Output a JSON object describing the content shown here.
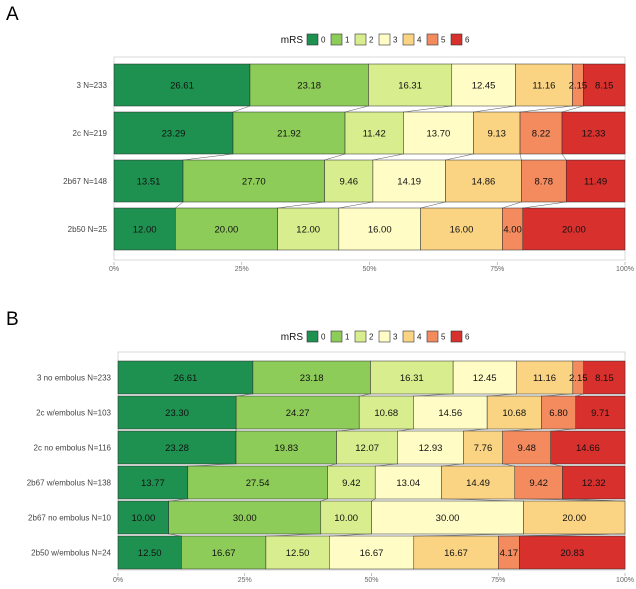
{
  "mrs_colors": [
    "#1e9150",
    "#8ecc5a",
    "#d8ed8d",
    "#fffcc5",
    "#fbd483",
    "#f38b5f",
    "#d7302d"
  ],
  "chart_data": [
    {
      "type": "bar",
      "orientation": "horizontal-stacked-percent",
      "panel_label": "A",
      "legend_title": "mRS",
      "legend_entries": [
        "0",
        "1",
        "2",
        "3",
        "4",
        "5",
        "6"
      ],
      "categories": [
        "3 N=233",
        "2c N=219",
        "2b67 N=148",
        "2b50 N=25"
      ],
      "values": [
        [
          26.61,
          23.18,
          16.31,
          12.45,
          11.16,
          2.15,
          8.15
        ],
        [
          23.29,
          21.92,
          11.42,
          13.7,
          9.13,
          8.22,
          12.33
        ],
        [
          13.51,
          27.7,
          9.46,
          14.19,
          14.86,
          8.78,
          11.49
        ],
        [
          12.0,
          20.0,
          12.0,
          16.0,
          16.0,
          4.0,
          20.0
        ]
      ],
      "labels": [
        [
          "26.61",
          "23.18",
          "16.31",
          "12.45",
          "11.16",
          "2.15",
          "8.15"
        ],
        [
          "23.29",
          "21.92",
          "11.42",
          "13.70",
          "9.13",
          "8.22",
          "12.33"
        ],
        [
          "13.51",
          "27.70",
          "9.46",
          "14.19",
          "14.86",
          "8.78",
          "11.49"
        ],
        [
          "12.00",
          "20.00",
          "12.00",
          "16.00",
          "16.00",
          "4.00",
          "20.00"
        ]
      ],
      "x_ticks": [
        "0%",
        "25%",
        "50%",
        "75%",
        "100%"
      ],
      "xlim": [
        0,
        100
      ]
    },
    {
      "type": "bar",
      "orientation": "horizontal-stacked-percent",
      "panel_label": "B",
      "legend_title": "mRS",
      "legend_entries": [
        "0",
        "1",
        "2",
        "3",
        "4",
        "5",
        "6"
      ],
      "categories": [
        "3 no embolus N=233",
        "2c w/embolus N=103",
        "2c no embolus N=116",
        "2b67 w/embolus N=138",
        "2b67 no embolus N=10",
        "2b50 w/embolus N=24"
      ],
      "values": [
        [
          26.61,
          23.18,
          16.31,
          12.45,
          11.16,
          2.15,
          8.15
        ],
        [
          23.3,
          24.27,
          10.68,
          14.56,
          10.68,
          6.8,
          9.71
        ],
        [
          23.28,
          19.83,
          12.07,
          12.93,
          7.76,
          9.48,
          14.66
        ],
        [
          13.77,
          27.54,
          9.42,
          13.04,
          14.49,
          9.42,
          12.32
        ],
        [
          10.0,
          30.0,
          10.0,
          30.0,
          20.0,
          0,
          0
        ],
        [
          12.5,
          16.67,
          12.5,
          16.67,
          16.67,
          4.17,
          20.83
        ]
      ],
      "labels": [
        [
          "26.61",
          "23.18",
          "16.31",
          "12.45",
          "11.16",
          "2.15",
          "8.15"
        ],
        [
          "23.30",
          "24.27",
          "10.68",
          "14.56",
          "10.68",
          "6.80",
          "9.71"
        ],
        [
          "23.28",
          "19.83",
          "12.07",
          "12.93",
          "7.76",
          "9.48",
          "14.66"
        ],
        [
          "13.77",
          "27.54",
          "9.42",
          "13.04",
          "14.49",
          "9.42",
          "12.32"
        ],
        [
          "10.00",
          "30.00",
          "10.00",
          "30.00",
          "20.00",
          "",
          ""
        ],
        [
          "12.50",
          "16.67",
          "12.50",
          "16.67",
          "16.67",
          "4.17",
          "20.83"
        ]
      ],
      "x_ticks": [
        "0%",
        "25%",
        "50%",
        "75%",
        "100%"
      ],
      "xlim": [
        0,
        100
      ]
    }
  ]
}
